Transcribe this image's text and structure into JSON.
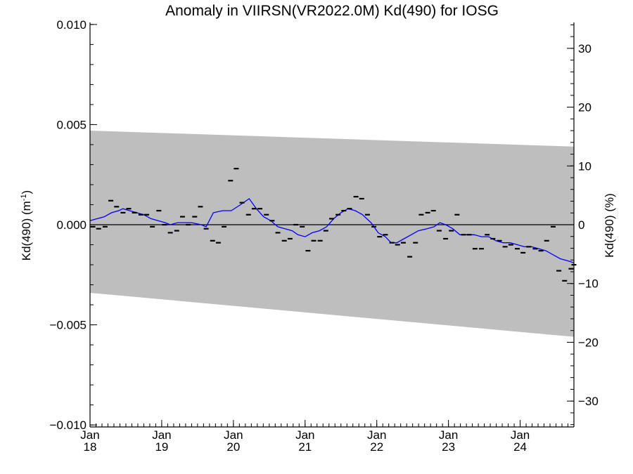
{
  "chart_data": {
    "type": "line",
    "title": "Anomaly in VIIRSN(VR2022.0M) Kd(490) for IOSG",
    "ylabel_left": "Kd(490) (m",
    "ylabel_left_sup": "-1",
    "ylabel_left_close": ")",
    "ylabel_right": "Kd(490) (%)",
    "xlim": [
      2018.0,
      2024.75
    ],
    "ylim_left": [
      -0.0101,
      0.0101
    ],
    "ylim_right": [
      -34.4,
      34.4
    ],
    "y_left_ticks": [
      {
        "value": 0.01,
        "label": "0.010"
      },
      {
        "value": 0.005,
        "label": "0.005"
      },
      {
        "value": 0.0,
        "label": "0.000"
      },
      {
        "value": -0.005,
        "label": "−0.005"
      },
      {
        "value": -0.01,
        "label": "−0.010"
      }
    ],
    "y_right_ticks": [
      {
        "value": 30,
        "label": "30"
      },
      {
        "value": 20,
        "label": "20"
      },
      {
        "value": 10,
        "label": "10"
      },
      {
        "value": 0,
        "label": "0"
      },
      {
        "value": -10,
        "label": "−10"
      },
      {
        "value": -20,
        "label": "−20"
      },
      {
        "value": -30,
        "label": "−30"
      }
    ],
    "x_ticks": [
      {
        "value": 2018.0,
        "month": "Jan",
        "year": "18"
      },
      {
        "value": 2019.0,
        "month": "Jan",
        "year": "19"
      },
      {
        "value": 2020.0,
        "month": "Jan",
        "year": "20"
      },
      {
        "value": 2021.0,
        "month": "Jan",
        "year": "21"
      },
      {
        "value": 2022.0,
        "month": "Jan",
        "year": "22"
      },
      {
        "value": 2023.0,
        "month": "Jan",
        "year": "23"
      },
      {
        "value": 2024.0,
        "month": "Jan",
        "year": "24"
      }
    ],
    "band": {
      "upper": [
        [
          2018.0,
          0.0047
        ],
        [
          2024.75,
          0.0039
        ]
      ],
      "lower": [
        [
          2018.0,
          -0.0034
        ],
        [
          2024.75,
          -0.0056
        ]
      ],
      "color": "#bebebe"
    },
    "zero_line_color": "#000000",
    "monthly_anomaly": {
      "color": "#000000",
      "points": [
        [
          2018.04,
          -0.0001
        ],
        [
          2018.12,
          -0.0002
        ],
        [
          2018.21,
          -0.0001
        ],
        [
          2018.29,
          0.0012
        ],
        [
          2018.37,
          0.0009
        ],
        [
          2018.46,
          0.0006
        ],
        [
          2018.54,
          0.0008
        ],
        [
          2018.62,
          0.0006
        ],
        [
          2018.71,
          0.0005
        ],
        [
          2018.79,
          0.0005
        ],
        [
          2018.87,
          -0.0001
        ],
        [
          2018.96,
          0.0007
        ],
        [
          2019.04,
          0.0
        ],
        [
          2019.12,
          -0.0004
        ],
        [
          2019.21,
          -0.0003
        ],
        [
          2019.29,
          0.0004
        ],
        [
          2019.37,
          0.0
        ],
        [
          2019.46,
          0.0004
        ],
        [
          2019.54,
          0.0009
        ],
        [
          2019.62,
          -0.0002
        ],
        [
          2019.71,
          -0.0008
        ],
        [
          2019.79,
          -0.0009
        ],
        [
          2019.87,
          -0.0001
        ],
        [
          2019.96,
          0.0022
        ],
        [
          2020.04,
          0.0028
        ],
        [
          2020.12,
          0.0011
        ],
        [
          2020.21,
          0.0005
        ],
        [
          2020.29,
          0.0008
        ],
        [
          2020.37,
          0.0008
        ],
        [
          2020.46,
          0.0005
        ],
        [
          2020.54,
          0.0002
        ],
        [
          2020.62,
          -0.0004
        ],
        [
          2020.71,
          -0.0008
        ],
        [
          2020.79,
          -0.0007
        ],
        [
          2020.87,
          0.0
        ],
        [
          2020.96,
          -0.0001
        ],
        [
          2021.04,
          -0.0013
        ],
        [
          2021.12,
          -0.0008
        ],
        [
          2021.21,
          -0.0008
        ],
        [
          2021.29,
          -0.0003
        ],
        [
          2021.37,
          0.0003
        ],
        [
          2021.46,
          0.0005
        ],
        [
          2021.54,
          0.0007
        ],
        [
          2021.62,
          0.0008
        ],
        [
          2021.71,
          0.0014
        ],
        [
          2021.79,
          0.0013
        ],
        [
          2021.87,
          0.0005
        ],
        [
          2021.96,
          -0.0001
        ],
        [
          2022.04,
          -0.0006
        ],
        [
          2022.12,
          -0.0005
        ],
        [
          2022.21,
          -0.0009
        ],
        [
          2022.29,
          -0.001
        ],
        [
          2022.37,
          -0.0009
        ],
        [
          2022.46,
          -0.0016
        ],
        [
          2022.54,
          -0.0009
        ],
        [
          2022.62,
          0.0005
        ],
        [
          2022.71,
          0.0006
        ],
        [
          2022.79,
          0.0007
        ],
        [
          2022.87,
          -0.0003
        ],
        [
          2022.96,
          -0.0007
        ],
        [
          2023.04,
          -0.0003
        ],
        [
          2023.12,
          0.0005
        ],
        [
          2023.21,
          -0.0005
        ],
        [
          2023.29,
          -0.0005
        ],
        [
          2023.37,
          -0.0012
        ],
        [
          2023.46,
          -0.0012
        ],
        [
          2023.54,
          -0.0005
        ],
        [
          2023.62,
          -0.0007
        ],
        [
          2023.71,
          -0.0008
        ],
        [
          2023.79,
          -0.0011
        ],
        [
          2023.87,
          -0.001
        ],
        [
          2023.96,
          -0.0012
        ],
        [
          2024.04,
          -0.0014
        ],
        [
          2024.12,
          -0.0011
        ],
        [
          2024.21,
          -0.0012
        ],
        [
          2024.29,
          -0.0013
        ],
        [
          2024.37,
          -0.0008
        ],
        [
          2024.46,
          -0.0001
        ],
        [
          2024.54,
          -0.0023
        ],
        [
          2024.62,
          -0.0028
        ],
        [
          2024.71,
          -0.0022
        ],
        [
          2024.75,
          -0.002
        ]
      ]
    },
    "running_mean": {
      "color": "#0000ff",
      "points": [
        [
          2018.0,
          0.0002
        ],
        [
          2018.1,
          0.0003
        ],
        [
          2018.2,
          0.0004
        ],
        [
          2018.3,
          0.0006
        ],
        [
          2018.4,
          0.0007
        ],
        [
          2018.46,
          0.0008
        ],
        [
          2018.55,
          0.0007
        ],
        [
          2018.65,
          0.0006
        ],
        [
          2018.75,
          0.0005
        ],
        [
          2018.85,
          0.0003
        ],
        [
          2018.95,
          0.0002
        ],
        [
          2019.05,
          0.0001
        ],
        [
          2019.12,
          0.0
        ],
        [
          2019.22,
          0.0001
        ],
        [
          2019.32,
          0.0001
        ],
        [
          2019.42,
          0.0001
        ],
        [
          2019.55,
          0.0
        ],
        [
          2019.62,
          -0.0001
        ],
        [
          2019.72,
          0.0006
        ],
        [
          2019.85,
          0.0007
        ],
        [
          2019.97,
          0.0007
        ],
        [
          2020.1,
          0.001
        ],
        [
          2020.22,
          0.0013
        ],
        [
          2020.32,
          0.0008
        ],
        [
          2020.42,
          0.0004
        ],
        [
          2020.52,
          0.0002
        ],
        [
          2020.62,
          -0.0001
        ],
        [
          2020.72,
          -0.0002
        ],
        [
          2020.82,
          -0.0003
        ],
        [
          2020.9,
          -0.0005
        ],
        [
          2021.0,
          -0.0006
        ],
        [
          2021.1,
          -0.0004
        ],
        [
          2021.2,
          -0.0003
        ],
        [
          2021.3,
          -0.0001
        ],
        [
          2021.4,
          0.0003
        ],
        [
          2021.5,
          0.0006
        ],
        [
          2021.6,
          0.0008
        ],
        [
          2021.7,
          0.0007
        ],
        [
          2021.8,
          0.0005
        ],
        [
          2021.92,
          0.0001
        ],
        [
          2022.02,
          -0.0004
        ],
        [
          2022.12,
          -0.0006
        ],
        [
          2022.2,
          -0.0009
        ],
        [
          2022.28,
          -0.0009
        ],
        [
          2022.38,
          -0.0007
        ],
        [
          2022.48,
          -0.0005
        ],
        [
          2022.58,
          -0.0003
        ],
        [
          2022.7,
          -0.0002
        ],
        [
          2022.8,
          -0.0001
        ],
        [
          2022.88,
          0.0001
        ],
        [
          2022.96,
          0.0
        ],
        [
          2023.06,
          -0.0002
        ],
        [
          2023.16,
          -0.0005
        ],
        [
          2023.26,
          -0.0005
        ],
        [
          2023.36,
          -0.0005
        ],
        [
          2023.46,
          -0.0006
        ],
        [
          2023.56,
          -0.0006
        ],
        [
          2023.66,
          -0.0008
        ],
        [
          2023.76,
          -0.0009
        ],
        [
          2023.86,
          -0.0009
        ],
        [
          2023.96,
          -0.001
        ],
        [
          2024.06,
          -0.0011
        ],
        [
          2024.16,
          -0.0011
        ],
        [
          2024.26,
          -0.0012
        ],
        [
          2024.36,
          -0.0013
        ],
        [
          2024.46,
          -0.0015
        ],
        [
          2024.56,
          -0.0017
        ],
        [
          2024.66,
          -0.0018
        ],
        [
          2024.75,
          -0.0019
        ]
      ]
    }
  }
}
